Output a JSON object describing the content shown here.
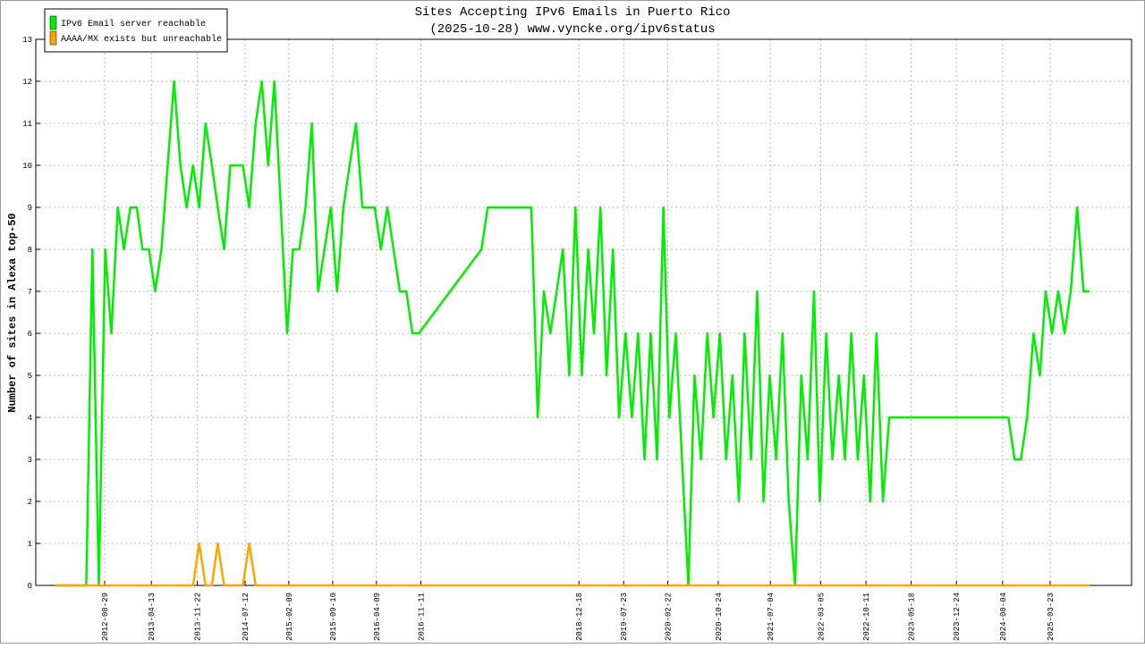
{
  "chart_data": {
    "type": "line",
    "title": "Sites Accepting IPv6 Emails in Puerto Rico",
    "subtitle": "(2025-10-28) www.vyncke.org/ipv6status",
    "y_label": "Number of sites in Alexa top-50",
    "legend": "top-left",
    "grid": true,
    "xlim": [
      "2011-09-30",
      "2026-04-22"
    ],
    "xticks": [
      "2012-08-29",
      "2013-04-13",
      "2013-11-22",
      "2014-07-12",
      "2015-02-09",
      "2015-09-10",
      "2016-04-09",
      "2016-11-11",
      "2018-12-18",
      "2019-07-23",
      "2020-02-22",
      "2020-10-24",
      "2021-07-04",
      "2022-03-05",
      "2022-10-11",
      "2023-05-18",
      "2023-12-24",
      "2024-08-04",
      "2025-03-23"
    ],
    "ylim": [
      0,
      13
    ],
    "yticks": [
      0,
      1,
      2,
      3,
      4,
      5,
      6,
      7,
      8,
      9,
      10,
      11,
      12,
      13
    ],
    "series": [
      {
        "name": "IPv6 Email server reachable",
        "color": "#00ee00",
        "x": [
          "2012-01",
          "2012-06",
          "2012-07",
          "2012-08",
          "2012-09",
          "2012-10",
          "2012-11",
          "2012-12",
          "2013-01",
          "2013-02",
          "2013-03",
          "2013-04",
          "2013-05",
          "2013-06",
          "2013-07",
          "2013-08",
          "2013-09",
          "2013-10",
          "2013-11",
          "2013-12",
          "2014-01",
          "2014-02",
          "2014-03",
          "2014-04",
          "2014-05",
          "2014-06",
          "2014-07",
          "2014-08",
          "2014-09",
          "2014-10",
          "2014-11",
          "2014-12",
          "2015-01",
          "2015-02",
          "2015-03",
          "2015-04",
          "2015-05",
          "2015-06",
          "2015-07",
          "2015-08",
          "2015-09",
          "2015-10",
          "2015-11",
          "2015-12",
          "2016-01",
          "2016-02",
          "2016-03",
          "2016-04",
          "2016-05",
          "2016-06",
          "2016-07",
          "2016-08",
          "2016-09",
          "2016-10",
          "2016-11",
          "2017-09",
          "2017-10",
          "2018-05",
          "2018-06",
          "2018-07",
          "2018-08",
          "2018-09",
          "2018-10",
          "2018-11",
          "2018-12",
          "2019-01",
          "2019-02",
          "2019-03",
          "2019-04",
          "2019-05",
          "2019-06",
          "2019-07",
          "2019-08",
          "2019-09",
          "2019-10",
          "2019-11",
          "2019-12",
          "2020-01",
          "2020-02",
          "2020-03",
          "2020-04",
          "2020-05",
          "2020-06",
          "2020-07",
          "2020-08",
          "2020-09",
          "2020-10",
          "2020-11",
          "2020-12",
          "2021-01",
          "2021-02",
          "2021-03",
          "2021-04",
          "2021-05",
          "2021-06",
          "2021-07",
          "2021-08",
          "2021-09",
          "2021-10",
          "2021-11",
          "2021-12",
          "2022-01",
          "2022-02",
          "2022-03",
          "2022-04",
          "2022-05",
          "2022-06",
          "2022-07",
          "2022-08",
          "2022-09",
          "2022-10",
          "2022-11",
          "2022-12",
          "2023-01",
          "2023-02",
          "2024-09",
          "2024-10",
          "2024-11",
          "2024-12",
          "2025-01",
          "2025-02",
          "2025-03",
          "2025-04",
          "2025-05",
          "2025-06",
          "2025-07",
          "2025-08",
          "2025-09",
          "2025-10"
        ],
        "values": [
          0,
          0,
          8,
          0,
          8,
          6,
          9,
          8,
          9,
          9,
          8,
          8,
          7,
          8,
          10,
          12,
          10,
          9,
          10,
          9,
          11,
          10,
          9,
          8,
          10,
          10,
          10,
          9,
          11,
          12,
          10,
          12,
          9,
          6,
          8,
          8,
          9,
          11,
          7,
          8,
          9,
          7,
          9,
          10,
          11,
          9,
          9,
          9,
          8,
          9,
          8,
          7,
          7,
          6,
          6,
          8,
          9,
          9,
          4,
          7,
          6,
          7,
          8,
          5,
          9,
          5,
          8,
          6,
          9,
          5,
          8,
          4,
          6,
          4,
          6,
          3,
          6,
          3,
          9,
          4,
          6,
          3,
          0,
          5,
          3,
          6,
          4,
          6,
          3,
          5,
          2,
          6,
          3,
          7,
          2,
          5,
          3,
          6,
          2,
          0,
          5,
          3,
          7,
          2,
          6,
          3,
          5,
          3,
          6,
          3,
          5,
          2,
          6,
          2,
          4,
          4,
          3,
          3,
          4,
          6,
          5,
          7,
          6,
          7,
          6,
          7,
          9,
          7,
          7
        ]
      },
      {
        "name": "AAAA/MX exists but unreachable",
        "color": "#ffa500",
        "x": [
          "2012-01",
          "2013-11",
          "2013-12",
          "2014-01",
          "2014-02",
          "2014-03",
          "2014-04",
          "2014-07",
          "2014-08",
          "2014-09",
          "2025-10"
        ],
        "values": [
          0,
          0,
          1,
          0,
          0,
          1,
          0,
          0,
          1,
          0,
          0
        ]
      }
    ]
  }
}
